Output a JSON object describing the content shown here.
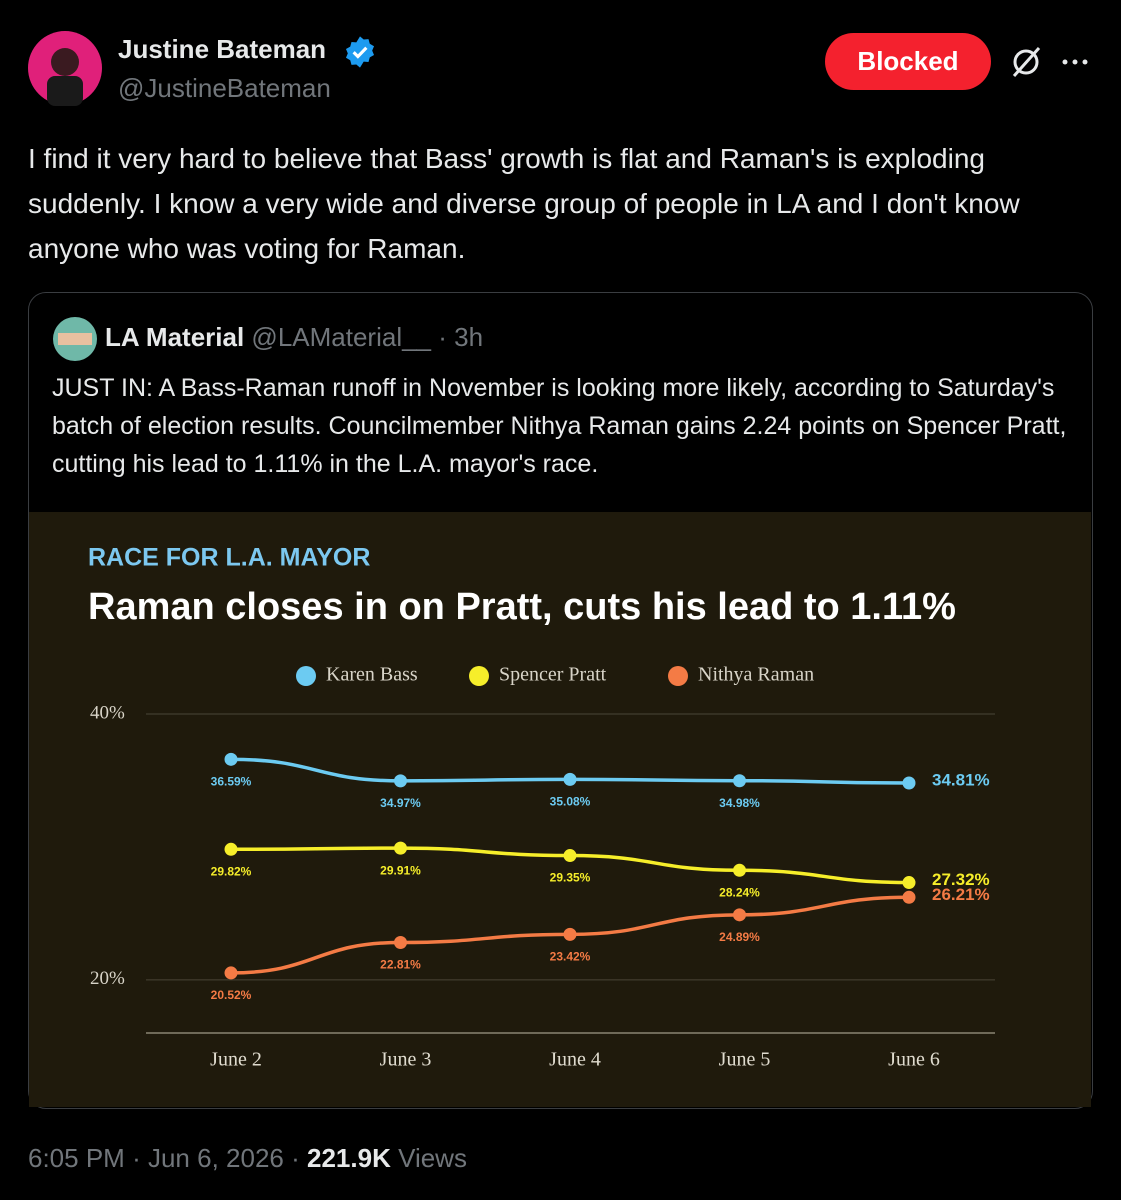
{
  "tweet": {
    "author": {
      "name": "Justine Bateman",
      "handle": "@JustineBateman"
    },
    "button": "Blocked",
    "text": "I find it very hard to believe that Bass' growth is flat and Raman's is exploding suddenly. I know a very wide and diverse group of people in LA and I don't know anyone who was voting for Raman.",
    "quote": {
      "author": "LA Material",
      "handle": "@LAMaterial__",
      "separator": "·",
      "time": "3h",
      "text": "JUST IN: A Bass-Raman runoff in November is looking more likely, according to Saturday's batch of election results. Councilmember Nithya Raman gains 2.24 points on Spencer Pratt, cutting his lead to 1.11% in the L.A. mayor's race."
    },
    "footer": {
      "time": "6:05 PM",
      "separator": "·",
      "date": "Jun 6, 2026",
      "views": "221.9K",
      "views_label": "Views"
    }
  },
  "chart_data": {
    "type": "line",
    "subtitle": "RACE FOR L.A. MAYOR",
    "title": "Raman closes in on Pratt, cuts his lead to 1.11%",
    "categories": [
      "June 2",
      "June 3",
      "June 4",
      "June 5",
      "June 6"
    ],
    "series": [
      {
        "name": "Karen Bass",
        "color": "#6ccbf2",
        "values": [
          36.59,
          34.97,
          35.08,
          34.98,
          34.81
        ],
        "value_labels": [
          "36.59%",
          "34.97%",
          "35.08%",
          "34.98%",
          "34.81%"
        ]
      },
      {
        "name": "Spencer Pratt",
        "color": "#f6ee2a",
        "values": [
          29.82,
          29.91,
          29.35,
          28.24,
          27.32
        ],
        "value_labels": [
          "29.82%",
          "29.91%",
          "29.35%",
          "28.24%",
          "27.32%"
        ]
      },
      {
        "name": "Nithya Raman",
        "color": "#f47b45",
        "values": [
          20.52,
          22.81,
          23.42,
          24.89,
          26.21
        ],
        "value_labels": [
          "20.52%",
          "22.81%",
          "23.42%",
          "24.89%",
          "26.21%"
        ]
      }
    ],
    "ylim": [
      16,
      40
    ],
    "yticks": [
      {
        "value": 20,
        "label": "20%"
      },
      {
        "value": 40,
        "label": "40%"
      }
    ],
    "grid": true
  }
}
